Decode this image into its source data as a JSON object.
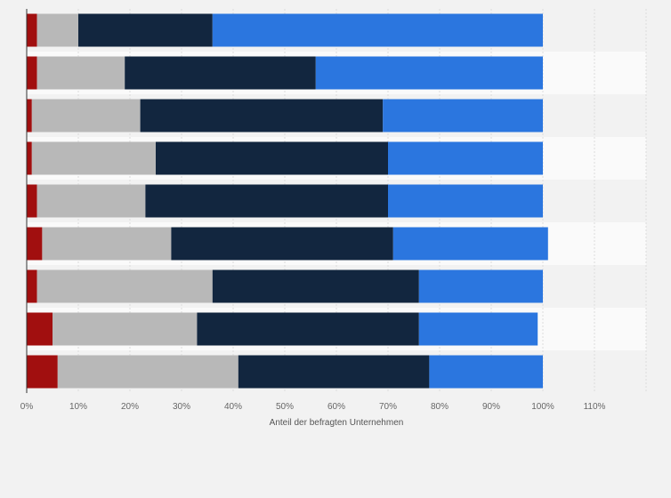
{
  "chart_data": {
    "type": "bar",
    "orientation": "horizontal",
    "stacked": true,
    "xlabel": "Anteil der befragten Unternehmen",
    "xlim": [
      0,
      120
    ],
    "x_ticks": [
      "0%",
      "10%",
      "20%",
      "30%",
      "40%",
      "50%",
      "60%",
      "70%",
      "80%",
      "90%",
      "100%",
      "110%"
    ],
    "grid": true,
    "series": [
      {
        "color": "#a10f0f",
        "values": [
          2,
          2,
          1,
          1,
          2,
          3,
          2,
          5,
          6
        ]
      },
      {
        "color": "#b8b8b8",
        "values": [
          8,
          17,
          21,
          24,
          21,
          25,
          34,
          28,
          35
        ]
      },
      {
        "color": "#12263f",
        "values": [
          26,
          37,
          47,
          45,
          47,
          43,
          40,
          43,
          37
        ]
      },
      {
        "color": "#2b76df",
        "values": [
          64,
          44,
          31,
          30,
          30,
          30,
          24,
          23,
          22
        ]
      }
    ]
  }
}
